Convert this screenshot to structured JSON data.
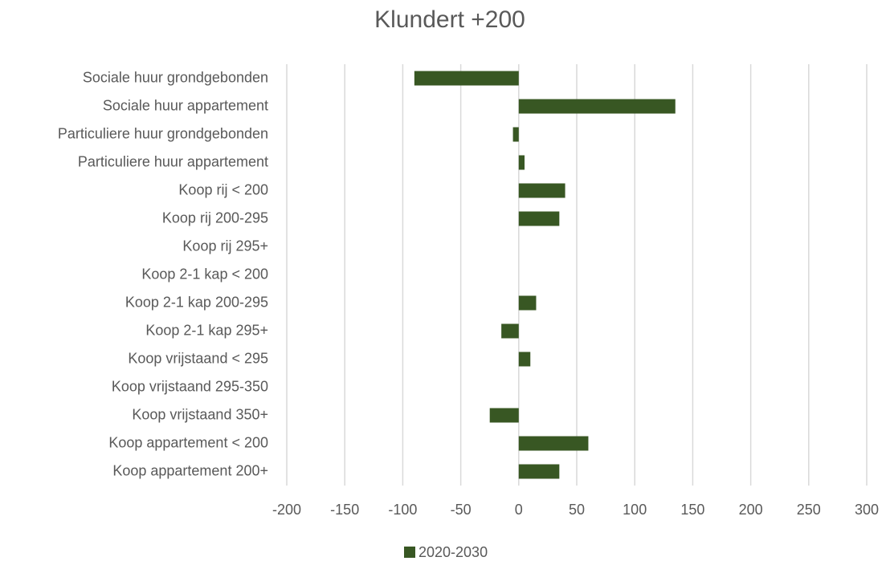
{
  "chart_data": {
    "type": "hbar",
    "title": "Klundert +200",
    "categories": [
      "Sociale huur grondgebonden",
      "Sociale huur appartement",
      "Particuliere huur grondgebonden",
      "Particuliere huur appartement",
      "Koop rij < 200",
      "Koop rij 200-295",
      "Koop rij 295+",
      "Koop 2-1 kap < 200",
      "Koop 2-1 kap 200-295",
      "Koop 2-1 kap 295+",
      "Koop vrijstaand < 295",
      "Koop vrijstaand 295-350",
      "Koop vrijstaand 350+",
      "Koop appartement < 200",
      "Koop appartement 200+"
    ],
    "series": [
      {
        "name": "2020-2030",
        "color": "#385723",
        "values": [
          -90,
          135,
          -5,
          5,
          40,
          35,
          0,
          0,
          15,
          -15,
          10,
          0,
          -25,
          60,
          35
        ]
      }
    ],
    "xlim": [
      -200,
      300
    ],
    "xticks": [
      -200,
      -150,
      -100,
      -50,
      0,
      50,
      100,
      150,
      200,
      250,
      300
    ],
    "grid": true,
    "legend": "bottom"
  }
}
